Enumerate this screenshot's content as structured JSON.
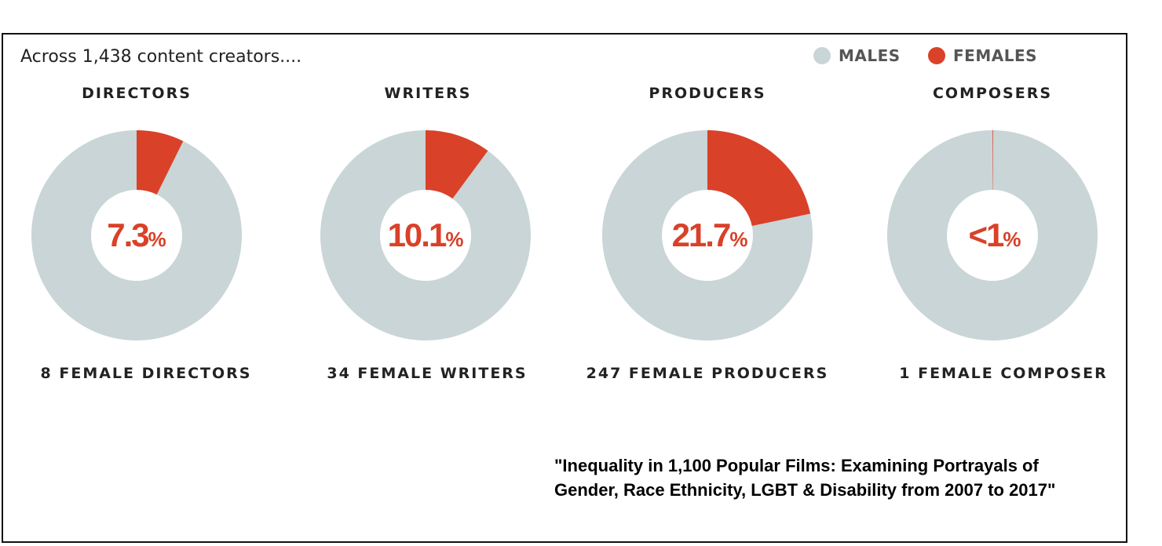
{
  "intro_text": "Across 1,438 content creators....",
  "legend": {
    "males_label": "MALES",
    "females_label": "FEMALES"
  },
  "colors": {
    "males": "#c9d5d6",
    "females": "#d94129",
    "text": "#222222"
  },
  "chart_data": {
    "type": "pie",
    "variant": "donut",
    "series_names": [
      "MALES",
      "FEMALES"
    ],
    "legend_position": "top-right",
    "charts": [
      {
        "category": "DIRECTORS",
        "female_pct": 7.3,
        "center_value": "7.3",
        "center_unit": "%",
        "count_label": "8 FEMALE DIRECTORS"
      },
      {
        "category": "WRITERS",
        "female_pct": 10.1,
        "center_value": "10.1",
        "center_unit": "%",
        "count_label": "34 FEMALE WRITERS"
      },
      {
        "category": "PRODUCERS",
        "female_pct": 21.7,
        "center_value": "21.7",
        "center_unit": "%",
        "count_label": "247 FEMALE PRODUCERS"
      },
      {
        "category": "COMPOSERS",
        "female_pct": 0.1,
        "center_value": "<1",
        "center_unit": "%",
        "count_label": "1 FEMALE COMPOSER"
      }
    ]
  },
  "source": {
    "line1": "\"Inequality in 1,100 Popular Films: Examining Portrayals of",
    "line2": "Gender, Race Ethnicity, LGBT & Disability from 2007 to 2017\""
  }
}
